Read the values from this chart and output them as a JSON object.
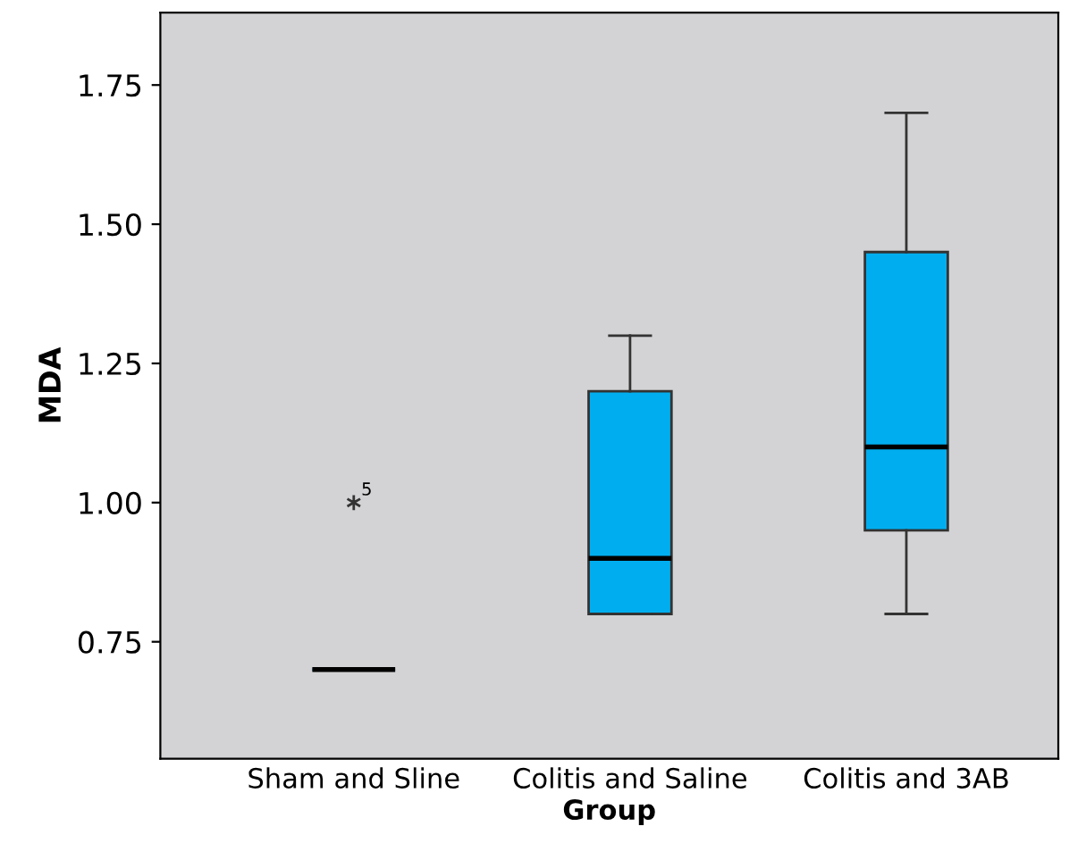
{
  "chart_data": {
    "type": "box",
    "xlabel": "Group",
    "ylabel": "MDA",
    "categories": [
      "Sham and Sline",
      "Colitis and Saline",
      "Colitis and 3AB"
    ],
    "color": "#00aeef",
    "boxes": [
      {
        "low": 0.7,
        "q1": 0.7,
        "median": 0.7,
        "q3": 0.7,
        "high": 0.7,
        "outliers": [
          1.0
        ]
      },
      {
        "low": 0.8,
        "q1": 0.8,
        "median": 0.9,
        "q3": 1.2,
        "high": 1.3
      },
      {
        "low": 0.8,
        "q1": 0.95,
        "median": 1.1,
        "q3": 1.45,
        "high": 1.7
      }
    ],
    "ylim": [
      0.54,
      1.88
    ],
    "yticks": [
      {
        "value": 0.75,
        "label": "0.75"
      },
      {
        "value": 1.0,
        "label": "1.00"
      },
      {
        "value": 1.25,
        "label": "1.25"
      },
      {
        "value": 1.5,
        "label": "1.50"
      },
      {
        "value": 1.75,
        "label": "1.75"
      }
    ],
    "annotations": [
      "5"
    ],
    "grid": false,
    "legend": false
  }
}
